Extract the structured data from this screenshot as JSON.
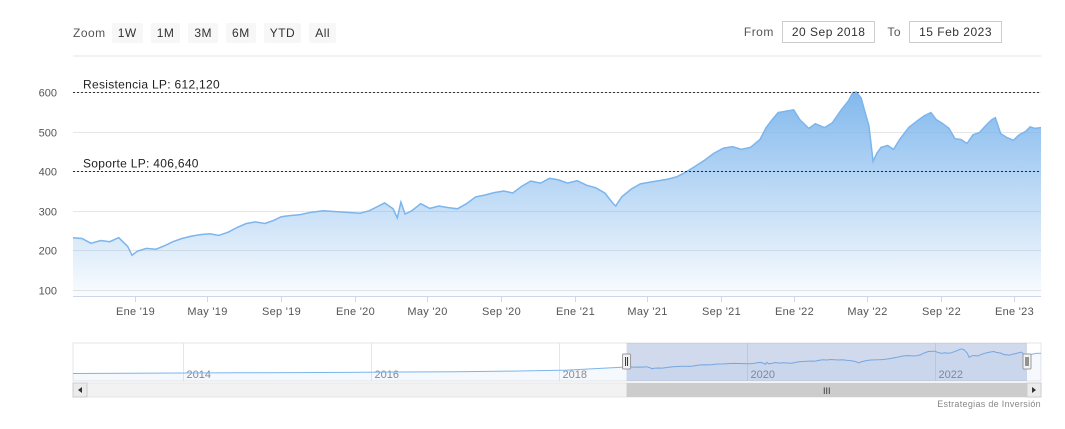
{
  "toolbar": {
    "zoom_label": "Zoom",
    "zoom_buttons": [
      "1W",
      "1M",
      "3M",
      "6M",
      "YTD",
      "All"
    ],
    "from_label": "From",
    "from_value": "20 Sep 2018",
    "to_label": "To",
    "to_value": "15 Feb 2023"
  },
  "chart_data": {
    "type": "area",
    "ylim": [
      100,
      620
    ],
    "y_ticks": [
      100,
      200,
      300,
      400,
      500,
      600
    ],
    "xlim": [
      "2018-09-20",
      "2023-02-15"
    ],
    "x_ticks": [
      {
        "date": "2019-01-01",
        "label": "Ene '19"
      },
      {
        "date": "2019-05-01",
        "label": "May '19"
      },
      {
        "date": "2019-09-01",
        "label": "Sep '19"
      },
      {
        "date": "2020-01-01",
        "label": "Ene '20"
      },
      {
        "date": "2020-05-01",
        "label": "May '20"
      },
      {
        "date": "2020-09-01",
        "label": "Sep '20"
      },
      {
        "date": "2021-01-01",
        "label": "Ene '21"
      },
      {
        "date": "2021-05-01",
        "label": "May '21"
      },
      {
        "date": "2021-09-01",
        "label": "Sep '21"
      },
      {
        "date": "2022-01-01",
        "label": "Ene '22"
      },
      {
        "date": "2022-05-01",
        "label": "May '22"
      },
      {
        "date": "2022-09-01",
        "label": "Sep '22"
      },
      {
        "date": "2023-01-01",
        "label": "Ene '23"
      }
    ],
    "grid": true,
    "series": [
      {
        "color": "#7cb5ec",
        "points": [
          [
            "2018-09-20",
            232
          ],
          [
            "2018-10-05",
            230
          ],
          [
            "2018-10-20",
            218
          ],
          [
            "2018-11-05",
            225
          ],
          [
            "2018-11-20",
            222
          ],
          [
            "2018-12-05",
            232
          ],
          [
            "2018-12-20",
            210
          ],
          [
            "2018-12-27",
            188
          ],
          [
            "2019-01-05",
            198
          ],
          [
            "2019-01-20",
            205
          ],
          [
            "2019-02-05",
            203
          ],
          [
            "2019-02-20",
            212
          ],
          [
            "2019-03-05",
            222
          ],
          [
            "2019-03-20",
            230
          ],
          [
            "2019-04-05",
            236
          ],
          [
            "2019-04-20",
            240
          ],
          [
            "2019-05-05",
            242
          ],
          [
            "2019-05-20",
            238
          ],
          [
            "2019-06-05",
            246
          ],
          [
            "2019-06-20",
            258
          ],
          [
            "2019-07-05",
            268
          ],
          [
            "2019-07-20",
            272
          ],
          [
            "2019-08-05",
            268
          ],
          [
            "2019-08-20",
            276
          ],
          [
            "2019-09-01",
            285
          ],
          [
            "2019-09-15",
            288
          ],
          [
            "2019-10-01",
            290
          ],
          [
            "2019-10-20",
            296
          ],
          [
            "2019-11-10",
            300
          ],
          [
            "2019-12-01",
            298
          ],
          [
            "2019-12-20",
            296
          ],
          [
            "2020-01-10",
            294
          ],
          [
            "2020-01-25",
            300
          ],
          [
            "2020-02-10",
            312
          ],
          [
            "2020-02-20",
            320
          ],
          [
            "2020-03-05",
            305
          ],
          [
            "2020-03-12",
            282
          ],
          [
            "2020-03-18",
            322
          ],
          [
            "2020-03-25",
            292
          ],
          [
            "2020-04-05",
            300
          ],
          [
            "2020-04-20",
            318
          ],
          [
            "2020-05-05",
            306
          ],
          [
            "2020-05-20",
            312
          ],
          [
            "2020-06-05",
            308
          ],
          [
            "2020-06-20",
            305
          ],
          [
            "2020-07-05",
            318
          ],
          [
            "2020-07-20",
            335
          ],
          [
            "2020-08-05",
            340
          ],
          [
            "2020-08-20",
            346
          ],
          [
            "2020-09-05",
            350
          ],
          [
            "2020-09-20",
            345
          ],
          [
            "2020-10-05",
            362
          ],
          [
            "2020-10-20",
            375
          ],
          [
            "2020-11-05",
            370
          ],
          [
            "2020-11-20",
            382
          ],
          [
            "2020-12-05",
            378
          ],
          [
            "2020-12-20",
            370
          ],
          [
            "2021-01-05",
            376
          ],
          [
            "2021-01-20",
            365
          ],
          [
            "2021-02-05",
            358
          ],
          [
            "2021-02-20",
            345
          ],
          [
            "2021-03-05",
            320
          ],
          [
            "2021-03-10",
            312
          ],
          [
            "2021-03-20",
            335
          ],
          [
            "2021-04-05",
            355
          ],
          [
            "2021-04-20",
            368
          ],
          [
            "2021-05-05",
            372
          ],
          [
            "2021-05-20",
            376
          ],
          [
            "2021-06-05",
            380
          ],
          [
            "2021-06-20",
            386
          ],
          [
            "2021-07-05",
            398
          ],
          [
            "2021-07-20",
            412
          ],
          [
            "2021-08-05",
            428
          ],
          [
            "2021-08-20",
            445
          ],
          [
            "2021-09-05",
            458
          ],
          [
            "2021-09-20",
            462
          ],
          [
            "2021-10-05",
            455
          ],
          [
            "2021-10-20",
            460
          ],
          [
            "2021-11-05",
            480
          ],
          [
            "2021-11-15",
            510
          ],
          [
            "2021-11-25",
            530
          ],
          [
            "2021-12-05",
            548
          ],
          [
            "2021-12-20",
            552
          ],
          [
            "2021-12-31",
            555
          ],
          [
            "2022-01-10",
            530
          ],
          [
            "2022-01-25",
            508
          ],
          [
            "2022-02-05",
            520
          ],
          [
            "2022-02-20",
            510
          ],
          [
            "2022-03-05",
            522
          ],
          [
            "2022-03-20",
            555
          ],
          [
            "2022-04-01",
            578
          ],
          [
            "2022-04-08",
            598
          ],
          [
            "2022-04-14",
            600
          ],
          [
            "2022-04-22",
            585
          ],
          [
            "2022-04-28",
            552
          ],
          [
            "2022-05-05",
            515
          ],
          [
            "2022-05-12",
            425
          ],
          [
            "2022-05-18",
            445
          ],
          [
            "2022-05-25",
            460
          ],
          [
            "2022-06-05",
            465
          ],
          [
            "2022-06-15",
            455
          ],
          [
            "2022-06-25",
            480
          ],
          [
            "2022-07-10",
            510
          ],
          [
            "2022-07-25",
            528
          ],
          [
            "2022-08-05",
            540
          ],
          [
            "2022-08-16",
            548
          ],
          [
            "2022-08-25",
            530
          ],
          [
            "2022-09-05",
            520
          ],
          [
            "2022-09-15",
            508
          ],
          [
            "2022-09-25",
            482
          ],
          [
            "2022-10-05",
            480
          ],
          [
            "2022-10-15",
            470
          ],
          [
            "2022-10-25",
            492
          ],
          [
            "2022-11-05",
            498
          ],
          [
            "2022-11-15",
            515
          ],
          [
            "2022-11-25",
            530
          ],
          [
            "2022-12-01",
            535
          ],
          [
            "2022-12-10",
            495
          ],
          [
            "2022-12-20",
            485
          ],
          [
            "2022-12-31",
            478
          ],
          [
            "2023-01-10",
            492
          ],
          [
            "2023-01-20",
            500
          ],
          [
            "2023-01-28",
            512
          ],
          [
            "2023-02-05",
            508
          ],
          [
            "2023-02-15",
            510
          ]
        ]
      }
    ],
    "plot_lines": [
      {
        "value": 600,
        "label": "Resistencia LP: 612,120",
        "color": "#333333"
      },
      {
        "value": 400,
        "label": "Soporte LP: 406,640",
        "color": "#8b0000"
      }
    ]
  },
  "navigator": {
    "labels": [
      "2014",
      "2016",
      "2018",
      "2020",
      "2022"
    ],
    "range": [
      "2012-11-01",
      "2023-02-15"
    ],
    "selected": [
      "2018-09-20",
      "2023-02-15"
    ],
    "series": [
      [
        "2012-11-01",
        90
      ],
      [
        "2013-06-01",
        95
      ],
      [
        "2014-01-01",
        100
      ],
      [
        "2014-08-01",
        105
      ],
      [
        "2015-03-01",
        108
      ],
      [
        "2015-10-01",
        112
      ],
      [
        "2016-05-01",
        120
      ],
      [
        "2016-12-01",
        128
      ],
      [
        "2017-07-01",
        140
      ],
      [
        "2018-02-01",
        160
      ],
      [
        "2018-09-20",
        225
      ]
    ],
    "scroll_grip": "III"
  },
  "credits": "Estrategias de Inversión"
}
